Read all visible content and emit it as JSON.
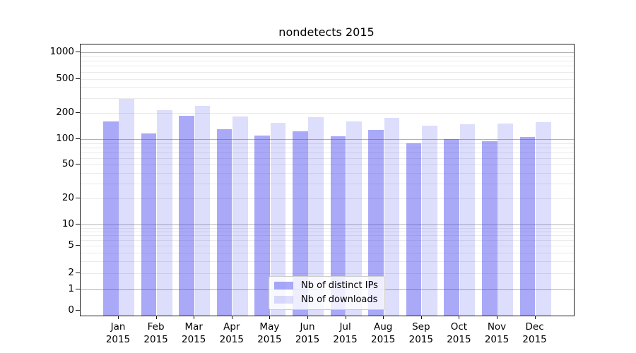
{
  "figure": {
    "background": "#ffffff",
    "spine_color": "#1a1a1a"
  },
  "chart_data": {
    "type": "bar",
    "title": "nondetects 2015",
    "categories": [
      "Jan",
      "Feb",
      "Mar",
      "Apr",
      "May",
      "Jun",
      "Jul",
      "Aug",
      "Sep",
      "Oct",
      "Nov",
      "Dec"
    ],
    "category_year": "2015",
    "series": [
      {
        "name": "Nb of distinct IPs",
        "color": "#4040f0",
        "alpha": 0.45,
        "values": [
          160,
          117,
          185,
          130,
          110,
          122,
          108,
          128,
          90,
          101,
          95,
          105
        ]
      },
      {
        "name": "Nb of downloads",
        "color": "#4040f0",
        "alpha": 0.18,
        "values": [
          290,
          215,
          240,
          183,
          155,
          180,
          160,
          174,
          143,
          148,
          150,
          156
        ]
      }
    ],
    "y_axis": {
      "scale": "log-with-zero",
      "tick_labels": [
        "1000",
        "500",
        "200",
        "100",
        "50",
        "20",
        "10",
        "5",
        "2",
        "1",
        "0"
      ],
      "range_top": 1000,
      "range_bottom": 0
    },
    "grid": {
      "major_color": "#b0b0b0",
      "minor_color": "#eaeaea",
      "major_values": [
        1000,
        100,
        10,
        1
      ],
      "minor_values": [
        900,
        800,
        700,
        600,
        500,
        400,
        300,
        200,
        90,
        80,
        70,
        60,
        50,
        40,
        30,
        20,
        9,
        8,
        7,
        6,
        5,
        4,
        3,
        2
      ]
    },
    "legend": {
      "position": "lower center"
    }
  }
}
